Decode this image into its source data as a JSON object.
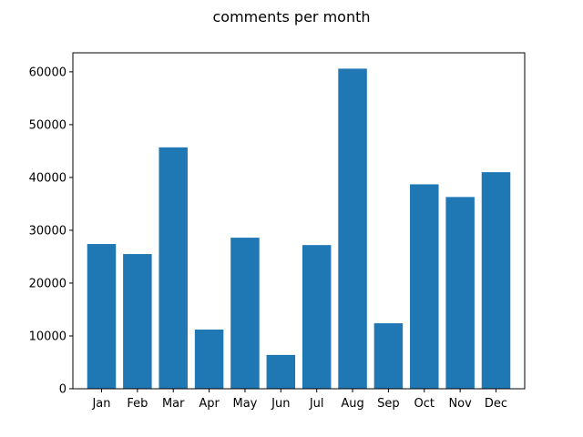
{
  "chart_data": {
    "type": "bar",
    "title": "comments per month",
    "xlabel": "",
    "ylabel": "",
    "categories": [
      "Jan",
      "Feb",
      "Mar",
      "Apr",
      "May",
      "Jun",
      "Jul",
      "Aug",
      "Sep",
      "Oct",
      "Nov",
      "Dec"
    ],
    "values": [
      27400,
      25500,
      45700,
      11200,
      28600,
      6400,
      27200,
      60600,
      12400,
      38700,
      36300,
      41000
    ],
    "ylim": [
      0,
      63600
    ],
    "yticks": [
      0,
      10000,
      20000,
      30000,
      40000,
      50000,
      60000
    ],
    "ytick_labels": [
      "0",
      "10000",
      "20000",
      "30000",
      "40000",
      "50000",
      "60000"
    ],
    "bar_color": "#1f77b4",
    "grid": false,
    "legend": "none"
  }
}
